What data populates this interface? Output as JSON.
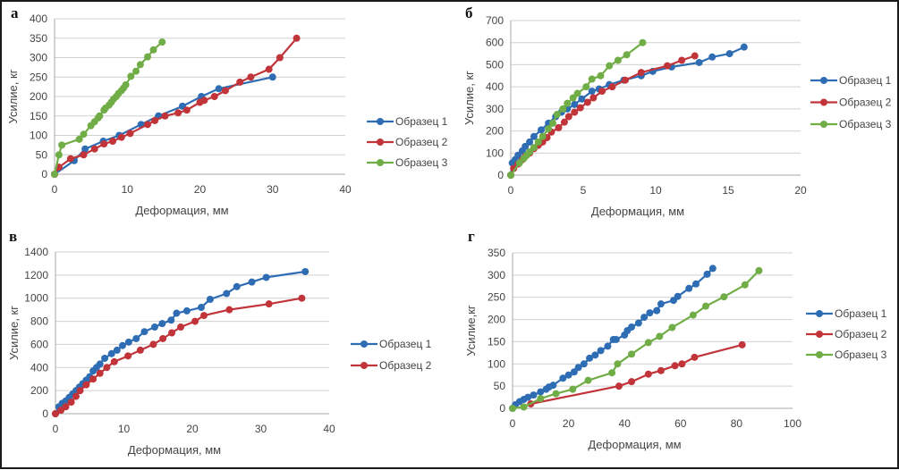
{
  "chart_data": [
    {
      "panel": "а",
      "type": "line",
      "xlabel": "Деформация, мм",
      "ylabel": "Усилие, кг",
      "xlim": [
        0,
        40
      ],
      "ylim": [
        0,
        400
      ],
      "xticks": [
        0,
        10,
        20,
        30,
        40
      ],
      "yticks": [
        0,
        50,
        100,
        150,
        200,
        250,
        300,
        350,
        400
      ],
      "grid": true,
      "legend": "right",
      "series": [
        {
          "name": "Образец 1",
          "color": "#2e6db4",
          "x": [
            0,
            2.7,
            4.2,
            6.7,
            8.9,
            11.9,
            14.3,
            17.6,
            20.2,
            22.6,
            30
          ],
          "y": [
            0,
            35,
            65,
            85,
            100,
            128,
            150,
            175,
            200,
            220,
            250
          ]
        },
        {
          "name": "Образец 2",
          "color": "#c0343a",
          "x": [
            0,
            0.6,
            2.2,
            4,
            5.5,
            6.8,
            8,
            9.2,
            10.4,
            12.8,
            13.8,
            15.2,
            17,
            18.2,
            20,
            20.6,
            22,
            23.5,
            25.5,
            27,
            29.5,
            31,
            33.3
          ],
          "y": [
            0,
            18,
            40,
            50,
            65,
            78,
            85,
            95,
            105,
            128,
            138,
            150,
            158,
            165,
            185,
            190,
            200,
            215,
            237,
            250,
            270,
            300,
            350
          ]
        },
        {
          "name": "Образец 3",
          "color": "#70ad47",
          "x": [
            0,
            0.6,
            1,
            3.4,
            4,
            5,
            5.5,
            6,
            6.2,
            6.8,
            7,
            7.5,
            7.8,
            8.1,
            8.5,
            8.8,
            9.2,
            9.5,
            9.8,
            10.5,
            11.2,
            11.8,
            12.8,
            13.6,
            14.8
          ],
          "y": [
            0,
            50,
            75,
            90,
            103,
            125,
            135,
            145,
            150,
            165,
            170,
            178,
            185,
            193,
            200,
            208,
            215,
            222,
            230,
            252,
            265,
            282,
            302,
            320,
            340
          ]
        }
      ]
    },
    {
      "panel": "б",
      "type": "line",
      "xlabel": "Деформация, мм",
      "ylabel": "Усилие, кг",
      "xlim": [
        0,
        20
      ],
      "ylim": [
        0,
        700
      ],
      "xticks": [
        0,
        5,
        10,
        15,
        20
      ],
      "yticks": [
        0,
        100,
        200,
        300,
        400,
        500,
        600,
        700
      ],
      "grid": true,
      "legend": "right",
      "series": [
        {
          "name": "Образец 1",
          "color": "#2e6db4",
          "x": [
            0,
            0.1,
            0.3,
            0.5,
            0.8,
            1,
            1.3,
            1.6,
            2.1,
            2.6,
            3.1,
            3.5,
            3.9,
            4.4,
            4.9,
            5.6,
            6.1,
            6.8,
            7.8,
            9,
            9.8,
            11.1,
            13,
            13.9,
            15.1,
            16.1
          ],
          "y": [
            0,
            55,
            70,
            90,
            110,
            130,
            150,
            175,
            205,
            235,
            265,
            285,
            300,
            320,
            345,
            380,
            390,
            410,
            430,
            450,
            470,
            490,
            510,
            535,
            550,
            580
          ]
        },
        {
          "name": "Образец 2",
          "color": "#c0343a",
          "x": [
            0,
            0.2,
            0.5,
            0.8,
            1,
            1.3,
            1.6,
            1.9,
            2.2,
            2.5,
            2.8,
            3.3,
            3.7,
            4,
            4.4,
            4.8,
            5.3,
            5.7,
            6.3,
            7,
            7.9,
            9,
            10.8,
            11.8,
            12.7
          ],
          "y": [
            0,
            30,
            50,
            70,
            85,
            100,
            120,
            135,
            150,
            170,
            195,
            215,
            240,
            265,
            285,
            305,
            330,
            350,
            380,
            400,
            430,
            465,
            495,
            520,
            540
          ]
        },
        {
          "name": "Образец 3",
          "color": "#70ad47",
          "x": [
            0,
            0.6,
            0.9,
            1.1,
            1.3,
            1.6,
            1.9,
            2.2,
            2.6,
            2.9,
            3.2,
            3.6,
            3.9,
            4.3,
            4.6,
            5.2,
            5.6,
            6.2,
            6.8,
            7.4,
            8,
            9.1
          ],
          "y": [
            0,
            55,
            75,
            90,
            105,
            125,
            150,
            175,
            210,
            235,
            275,
            300,
            325,
            350,
            370,
            400,
            435,
            450,
            495,
            520,
            545,
            600
          ]
        }
      ]
    },
    {
      "panel": "в",
      "type": "line",
      "xlabel": "Деформация, мм",
      "ylabel": "Усилие, кг",
      "xlim": [
        0,
        40
      ],
      "ylim": [
        0,
        1400
      ],
      "xticks": [
        0,
        10,
        20,
        30,
        40
      ],
      "yticks": [
        0,
        200,
        400,
        600,
        800,
        1000,
        1200,
        1400
      ],
      "grid": true,
      "legend": "right",
      "series": [
        {
          "name": "Образец 1",
          "color": "#2e6db4",
          "x": [
            0,
            0.5,
            1,
            1.5,
            2,
            2.5,
            3,
            3.5,
            4,
            4.5,
            5,
            5.5,
            6,
            6.5,
            7.2,
            8.2,
            9,
            9.8,
            10.7,
            11.8,
            13,
            14.5,
            15.6,
            16.9,
            17.7,
            19.2,
            21.3,
            22.6,
            25,
            26.5,
            28.7,
            30.8,
            36.5
          ],
          "y": [
            0,
            60,
            90,
            110,
            140,
            170,
            200,
            230,
            260,
            290,
            320,
            370,
            400,
            430,
            480,
            520,
            550,
            590,
            620,
            650,
            710,
            750,
            780,
            810,
            870,
            890,
            920,
            990,
            1040,
            1100,
            1140,
            1180,
            1230
          ]
        },
        {
          "name": "Образец 2",
          "color": "#c0343a",
          "x": [
            0,
            0.8,
            1.5,
            2.3,
            3,
            3.6,
            4.5,
            5.5,
            6.5,
            7.5,
            8.6,
            10.6,
            12.4,
            14.3,
            15.7,
            17,
            18.3,
            20.4,
            21.7,
            25.4,
            31.2,
            36
          ],
          "y": [
            0,
            30,
            60,
            100,
            150,
            200,
            250,
            300,
            350,
            400,
            450,
            500,
            550,
            600,
            650,
            700,
            750,
            800,
            850,
            900,
            950,
            1000
          ]
        }
      ]
    },
    {
      "panel": "г",
      "type": "line",
      "xlabel": "Деформация, мм",
      "ylabel": "Усилие,кг",
      "xlim": [
        0,
        100
      ],
      "ylim": [
        0,
        350
      ],
      "xticks": [
        0,
        20,
        40,
        60,
        80,
        100
      ],
      "yticks": [
        0,
        50,
        100,
        150,
        200,
        250,
        300,
        350
      ],
      "grid": true,
      "legend": "right",
      "series": [
        {
          "name": "Образец 1",
          "color": "#2e6db4",
          "x": [
            0,
            1,
            2.5,
            4,
            5.5,
            7.5,
            10,
            12,
            13,
            14.5,
            18,
            20,
            22,
            23.5,
            25.5,
            27.5,
            29.5,
            31.5,
            34,
            36,
            37,
            40,
            41,
            42.5,
            45,
            47,
            49,
            51.5,
            53,
            57.5,
            59,
            63,
            65.5,
            69.5,
            71.5
          ],
          "y": [
            0,
            8,
            15,
            20,
            25,
            30,
            37,
            43,
            48,
            52,
            68,
            75,
            82,
            92,
            100,
            113,
            120,
            130,
            140,
            155,
            155,
            165,
            175,
            183,
            192,
            205,
            215,
            220,
            235,
            243,
            252,
            270,
            280,
            302,
            315
          ]
        },
        {
          "name": "Образец 2",
          "color": "#c0343a",
          "x": [
            6.5,
            38,
            42.5,
            48.5,
            53,
            58,
            60.5,
            65,
            82
          ],
          "y": [
            10,
            50,
            60,
            77,
            85,
            96,
            100,
            115,
            143
          ]
        },
        {
          "name": "Образец 3",
          "color": "#70ad47",
          "x": [
            0,
            4,
            10,
            15.5,
            21.5,
            27,
            35.5,
            37.5,
            42.5,
            48.5,
            52.5,
            57,
            64.5,
            69,
            75.5,
            83,
            88
          ],
          "y": [
            0,
            3,
            22,
            33,
            43,
            63,
            80,
            100,
            122,
            148,
            162,
            182,
            210,
            230,
            251,
            278,
            310
          ]
        }
      ]
    }
  ]
}
